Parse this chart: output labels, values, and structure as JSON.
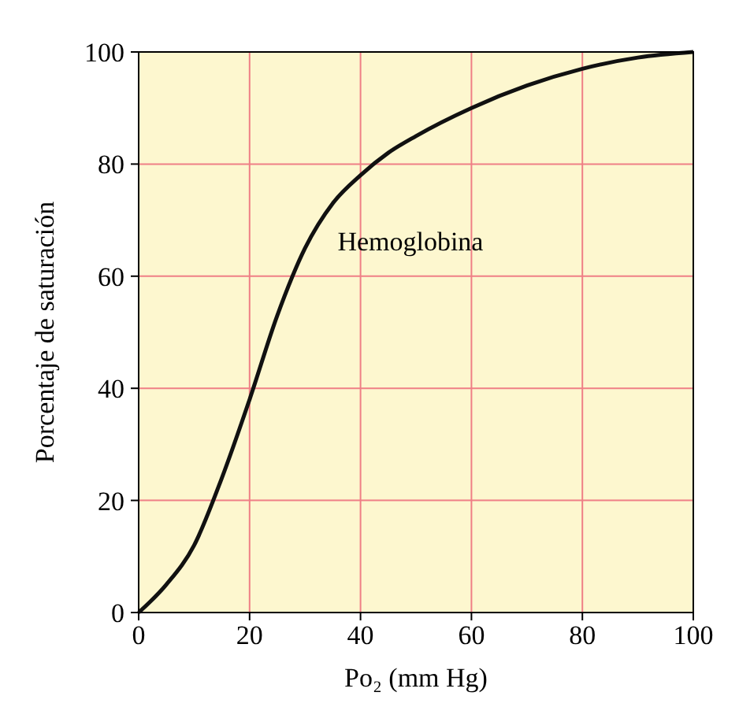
{
  "chart_data": {
    "type": "line",
    "xlabel": "Po₂ (mm Hg)",
    "ylabel": "Porcentaje de saturación",
    "x": [
      0,
      5,
      10,
      15,
      20,
      25,
      30,
      35,
      40,
      45,
      50,
      60,
      70,
      80,
      90,
      100
    ],
    "series": [
      {
        "name": "Hemoglobina",
        "color": "#111111",
        "values": [
          0,
          5,
          12,
          24,
          38,
          53,
          65,
          73,
          78,
          82,
          85,
          90,
          94,
          97,
          99,
          100
        ]
      }
    ],
    "xlim": [
      0,
      100
    ],
    "ylim": [
      0,
      100
    ],
    "xticks": [
      0,
      20,
      40,
      60,
      80,
      100
    ],
    "yticks": [
      0,
      20,
      40,
      60,
      80,
      100
    ],
    "grid": true,
    "marker": "none",
    "line_style": "solid"
  }
}
